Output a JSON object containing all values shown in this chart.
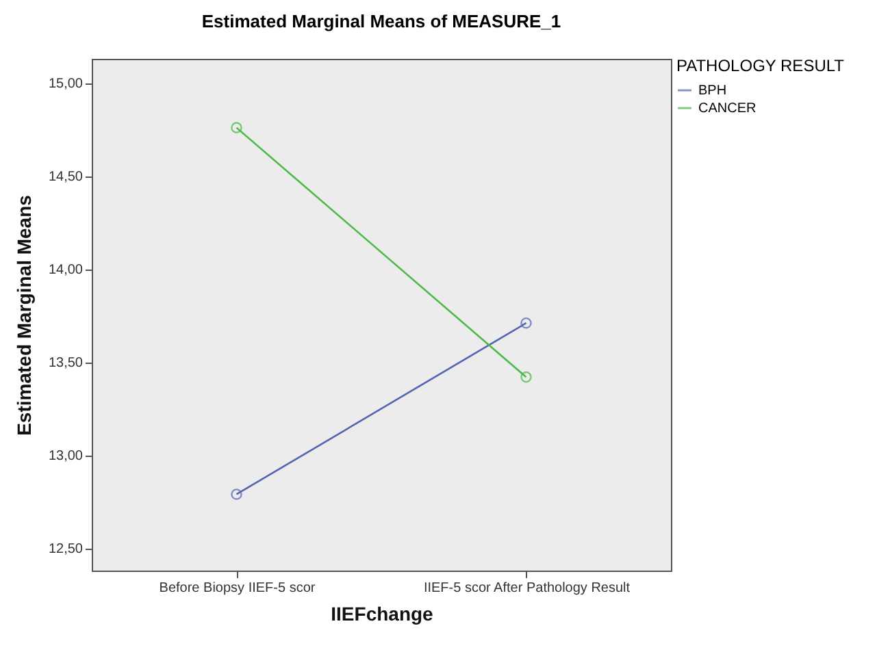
{
  "chart_data": {
    "type": "line",
    "title": "Estimated Marginal Means of MEASURE_1",
    "xlabel": "IIEFchange",
    "ylabel": "Estimated Marginal Means",
    "legend_title": "PATHOLOGY RESULT",
    "categories": [
      "Before Biopsy IIEF-5 scor",
      "IIEF-5 scor After Pathology Result"
    ],
    "series": [
      {
        "name": "BPH",
        "color": "#5563b0",
        "values": [
          12.79,
          13.71
        ]
      },
      {
        "name": "CANCER",
        "color": "#4cb848",
        "values": [
          14.76,
          13.42
        ]
      }
    ],
    "ylim": [
      12.38,
      15.13
    ],
    "yticks": [
      {
        "value": 12.5,
        "label": "12,50"
      },
      {
        "value": 13,
        "label": "13,00"
      },
      {
        "value": 13.5,
        "label": "13,50"
      },
      {
        "value": 14,
        "label": "14,00"
      },
      {
        "value": 14.5,
        "label": "14,50"
      },
      {
        "value": 15,
        "label": "15,00"
      }
    ],
    "marker": "circle",
    "legend": "top right",
    "grid": false
  }
}
